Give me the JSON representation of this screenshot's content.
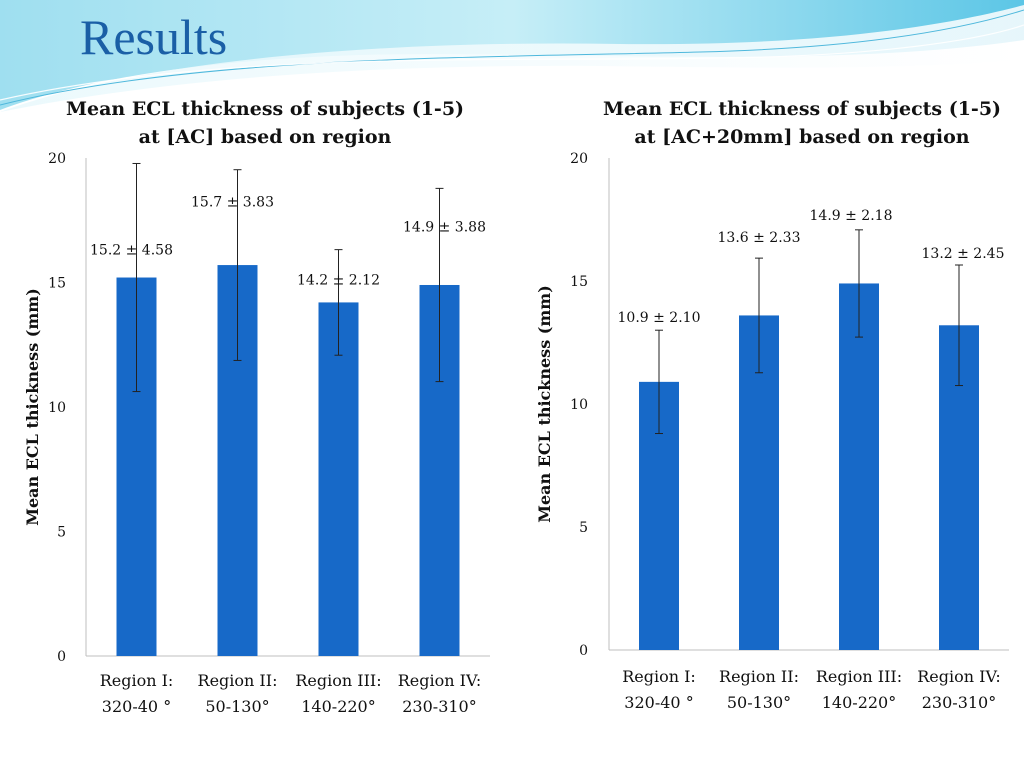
{
  "slide": {
    "title": "Results"
  },
  "chart_data": [
    {
      "type": "bar",
      "title": [
        "Mean ECL thickness of subjects (1-5)",
        "at [AC]  based on region"
      ],
      "ylabel": "Mean ECL thickness (mm)",
      "xlabel": "",
      "ylim": [
        0,
        20
      ],
      "yticks": [
        "0",
        "5",
        "10",
        "15",
        "20"
      ],
      "categories": [
        [
          "Region I:",
          "320-40 °"
        ],
        [
          "Region II:",
          "50-130°"
        ],
        [
          "Region III:",
          "140-220°"
        ],
        [
          "Region IV:",
          "230-310°"
        ]
      ],
      "values": [
        15.2,
        15.7,
        14.2,
        14.9
      ],
      "errors": [
        4.58,
        3.83,
        2.12,
        3.88
      ],
      "data_labels": [
        "15.2 ± 4.58",
        "15.7 ± 3.83",
        "14.2 ± 2.12",
        "14.9 ± 3.88"
      ],
      "bar_color": "#1769c8",
      "grid": false
    },
    {
      "type": "bar",
      "title": [
        "Mean ECL thickness of subjects (1-5)",
        "at [AC+20mm] based on region"
      ],
      "ylabel": "Mean ECL thickness (mm)",
      "xlabel": "",
      "ylim": [
        0,
        20
      ],
      "yticks": [
        "0",
        "5",
        "10",
        "15",
        "20"
      ],
      "categories": [
        [
          "Region I:",
          "320-40 °"
        ],
        [
          "Region II:",
          "50-130°"
        ],
        [
          "Region III:",
          "140-220°"
        ],
        [
          "Region IV:",
          "230-310°"
        ]
      ],
      "values": [
        10.9,
        13.6,
        14.9,
        13.2
      ],
      "errors": [
        2.1,
        2.33,
        2.18,
        2.45
      ],
      "data_labels": [
        "10.9 ± 2.10",
        "13.6 ± 2.33",
        "14.9 ± 2.18",
        "13.2 ± 2.45"
      ],
      "bar_color": "#1769c8",
      "grid": false
    }
  ]
}
